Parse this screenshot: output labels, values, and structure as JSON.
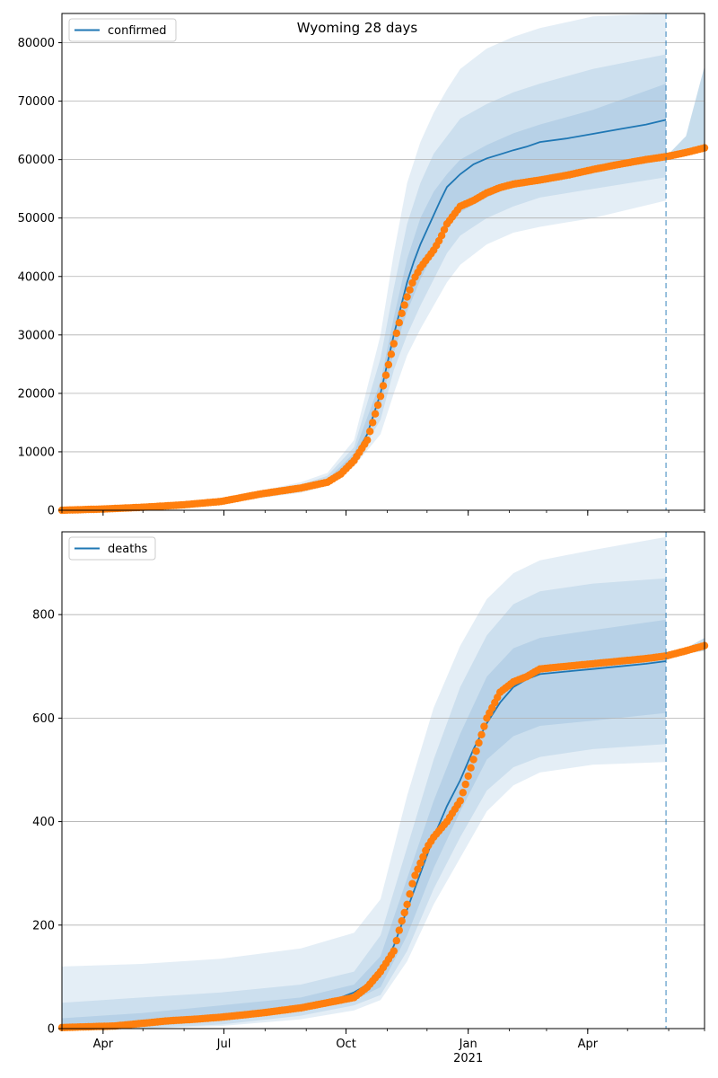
{
  "figure_title": "Wyoming 28 days",
  "chart_data": [
    {
      "type": "line",
      "id": "confirmed",
      "legend": "confirmed",
      "title": "Wyoming 28 days",
      "x_unit": "days since 2020-03-01",
      "x_ticks": [
        {
          "day": 31,
          "label": "Apr"
        },
        {
          "day": 122,
          "label": "Jul"
        },
        {
          "day": 214,
          "label": "Oct"
        },
        {
          "day": 306,
          "label": "Jan"
        },
        {
          "day": 396,
          "label": "Apr"
        }
      ],
      "year_label": {
        "day": 306,
        "label": "2021"
      },
      "xlim": [
        0,
        484
      ],
      "forecast_day": 455,
      "ylim": [
        0,
        85000
      ],
      "y_ticks": [
        0,
        10000,
        20000,
        30000,
        40000,
        50000,
        60000,
        70000,
        80000
      ],
      "median": {
        "x": [
          0,
          60,
          120,
          180,
          200,
          210,
          220,
          230,
          240,
          250,
          255,
          260,
          265,
          270,
          275,
          280,
          285,
          290,
          300,
          310,
          320,
          330,
          340,
          350,
          360,
          380,
          400,
          420,
          440,
          455
        ],
        "y": [
          0,
          300,
          1500,
          3800,
          5000,
          6500,
          9000,
          13000,
          20000,
          30000,
          34500,
          39000,
          42500,
          45500,
          48000,
          50500,
          53000,
          55300,
          57500,
          59200,
          60200,
          60900,
          61600,
          62200,
          63000,
          63600,
          64400,
          65200,
          66000,
          66800
        ]
      },
      "bands": [
        {
          "name": "inner",
          "x": [
            0,
            120,
            180,
            200,
            220,
            240,
            250,
            260,
            270,
            280,
            290,
            300,
            320,
            340,
            360,
            400,
            455
          ],
          "lo": [
            0,
            1400,
            3600,
            4800,
            8500,
            18000,
            27000,
            34000,
            39500,
            44000,
            48000,
            51000,
            53500,
            55500,
            56500,
            58000,
            60000
          ],
          "hi": [
            0,
            1600,
            4000,
            5300,
            9800,
            22000,
            33000,
            43000,
            50000,
            54500,
            57500,
            60000,
            62500,
            64500,
            66000,
            68500,
            73000
          ]
        },
        {
          "name": "middle",
          "x": [
            0,
            120,
            180,
            200,
            220,
            240,
            250,
            260,
            270,
            280,
            290,
            300,
            320,
            340,
            360,
            400,
            455
          ],
          "lo": [
            0,
            1300,
            3300,
            4500,
            8000,
            15500,
            24000,
            30000,
            35000,
            39500,
            44000,
            47000,
            50000,
            52000,
            53500,
            55000,
            57000
          ],
          "hi": [
            0,
            1750,
            4400,
            5900,
            10800,
            26000,
            38000,
            49000,
            56000,
            61000,
            64000,
            67000,
            69500,
            71500,
            73000,
            75500,
            78000
          ]
        },
        {
          "name": "outer",
          "x": [
            0,
            120,
            180,
            200,
            220,
            240,
            250,
            260,
            270,
            280,
            290,
            300,
            320,
            340,
            360,
            400,
            455
          ],
          "lo": [
            0,
            1200,
            3000,
            4200,
            7500,
            13000,
            20000,
            26500,
            31000,
            35000,
            39000,
            42000,
            45500,
            47500,
            48500,
            50000,
            53000
          ],
          "hi": [
            0,
            1900,
            4800,
            6400,
            12000,
            30000,
            44000,
            56000,
            63000,
            68000,
            72000,
            75500,
            79000,
            81000,
            82500,
            84500,
            86000
          ]
        }
      ],
      "observed": {
        "x": [
          0,
          30,
          60,
          90,
          120,
          150,
          180,
          200,
          210,
          220,
          230,
          240,
          250,
          255,
          260,
          265,
          270,
          275,
          280,
          285,
          290,
          300,
          310,
          320,
          330,
          340,
          360,
          380,
          400,
          420,
          440,
          455,
          470,
          484
        ],
        "y": [
          0,
          200,
          500,
          900,
          1500,
          2800,
          3800,
          4800,
          6200,
          8500,
          12000,
          19500,
          28500,
          33000,
          36500,
          39500,
          41500,
          43000,
          44500,
          46500,
          49000,
          52000,
          53000,
          54300,
          55200,
          55800,
          56500,
          57300,
          58300,
          59200,
          60000,
          60500,
          61200,
          62000
        ]
      },
      "post_forecast_band": {
        "x": [
          455,
          470,
          484
        ],
        "lo": [
          60000,
          61000,
          61500
        ],
        "hi": [
          60500,
          64000,
          76000
        ]
      }
    },
    {
      "type": "line",
      "id": "deaths",
      "legend": "deaths",
      "xlim": [
        0,
        484
      ],
      "forecast_day": 455,
      "ylim": [
        0,
        960
      ],
      "y_ticks": [
        0,
        200,
        400,
        600,
        800
      ],
      "median": {
        "x": [
          0,
          30,
          60,
          90,
          120,
          150,
          180,
          210,
          220,
          230,
          240,
          250,
          260,
          270,
          280,
          290,
          300,
          310,
          320,
          330,
          340,
          350,
          360,
          380,
          400,
          420,
          440,
          455
        ],
        "y": [
          2,
          5,
          10,
          18,
          25,
          35,
          45,
          60,
          70,
          85,
          110,
          160,
          230,
          300,
          370,
          430,
          480,
          540,
          590,
          630,
          660,
          675,
          685,
          690,
          695,
          700,
          705,
          710
        ]
      },
      "bands": [
        {
          "name": "inner",
          "x": [
            0,
            60,
            120,
            180,
            220,
            240,
            260,
            280,
            300,
            320,
            340,
            360,
            400,
            455
          ],
          "lo": [
            0,
            3,
            15,
            35,
            55,
            80,
            180,
            310,
            420,
            520,
            565,
            585,
            595,
            610
          ],
          "hi": [
            20,
            30,
            45,
            60,
            85,
            140,
            290,
            440,
            570,
            680,
            735,
            755,
            770,
            790
          ]
        },
        {
          "name": "middle",
          "x": [
            0,
            60,
            120,
            180,
            220,
            240,
            260,
            280,
            300,
            320,
            340,
            360,
            400,
            455
          ],
          "lo": [
            0,
            0,
            8,
            25,
            45,
            65,
            150,
            270,
            370,
            460,
            505,
            525,
            540,
            550
          ],
          "hi": [
            50,
            60,
            70,
            85,
            110,
            180,
            350,
            520,
            660,
            760,
            820,
            845,
            860,
            870
          ]
        },
        {
          "name": "outer",
          "x": [
            0,
            60,
            120,
            180,
            220,
            240,
            260,
            280,
            300,
            320,
            340,
            360,
            400,
            455
          ],
          "lo": [
            0,
            0,
            5,
            18,
            35,
            55,
            130,
            240,
            330,
            420,
            470,
            495,
            510,
            515
          ],
          "hi": [
            120,
            125,
            135,
            155,
            185,
            250,
            450,
            620,
            740,
            830,
            880,
            905,
            925,
            950
          ]
        }
      ],
      "observed": {
        "x": [
          0,
          40,
          60,
          80,
          100,
          120,
          150,
          180,
          200,
          220,
          230,
          240,
          250,
          255,
          260,
          265,
          270,
          275,
          280,
          290,
          300,
          310,
          320,
          330,
          340,
          350,
          360,
          380,
          400,
          420,
          440,
          455,
          470,
          484
        ],
        "y": [
          2,
          5,
          10,
          15,
          18,
          22,
          30,
          40,
          50,
          60,
          80,
          110,
          150,
          200,
          240,
          290,
          320,
          350,
          370,
          400,
          440,
          520,
          600,
          650,
          670,
          680,
          695,
          700,
          705,
          710,
          715,
          720,
          730,
          740
        ]
      },
      "post_forecast_band": {
        "x": [
          455,
          470,
          484
        ],
        "lo": [
          718,
          725,
          730
        ],
        "hi": [
          722,
          735,
          755
        ]
      }
    }
  ],
  "colors": {
    "median": "#1f77b4",
    "band": "#1f77b4",
    "observed": "#ff7f0e",
    "grid": "#b0b0b0",
    "axis": "#000000"
  }
}
